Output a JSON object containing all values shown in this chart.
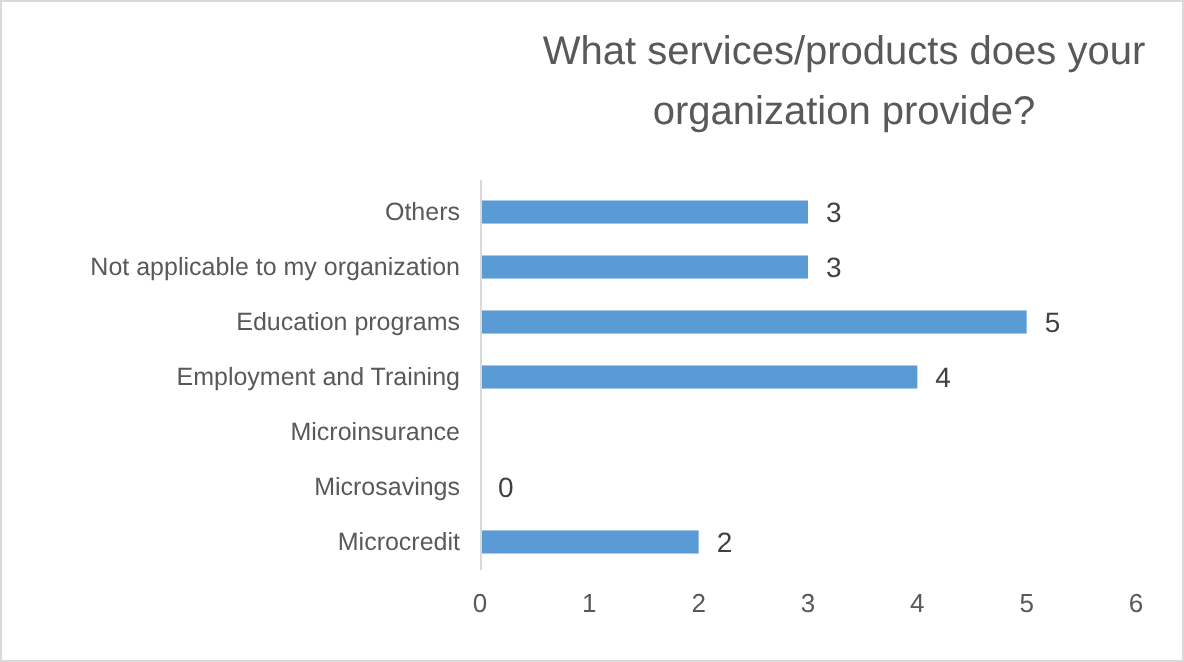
{
  "chart_data": {
    "type": "bar",
    "orientation": "horizontal",
    "title": "What services/products does your organization provide?",
    "categories": [
      "Others",
      "Not applicable to my organization",
      "Education programs",
      "Employment and Training",
      "Microinsurance",
      "Microsavings",
      "Microcredit"
    ],
    "values": [
      3,
      3,
      5,
      4,
      null,
      0,
      2
    ],
    "color": "#5b9bd5",
    "xlim": [
      0,
      6
    ],
    "xticks": [
      0,
      1,
      2,
      3,
      4,
      5,
      6
    ],
    "grid": false,
    "data_labels": true
  }
}
